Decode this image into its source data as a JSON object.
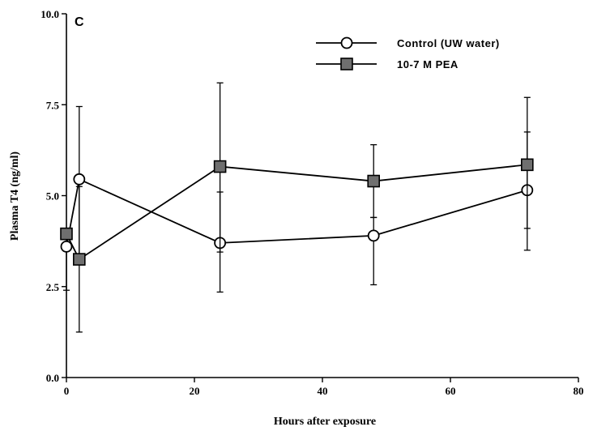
{
  "chart_data": {
    "type": "line",
    "panel_label": "C",
    "xlabel": "Hours after exposure",
    "ylabel": "Plasma T4 (ng/ml)",
    "xlim": [
      0,
      80
    ],
    "ylim": [
      0,
      10
    ],
    "x_ticks": [
      0,
      20,
      40,
      60,
      80
    ],
    "x_tick_labels": [
      "0",
      "20",
      "40",
      "60",
      "80"
    ],
    "y_ticks": [
      0,
      2.5,
      5,
      7.5,
      10
    ],
    "y_tick_labels": [
      "0.0",
      "2.5",
      "5.0",
      "7.5",
      "10.0"
    ],
    "grid": false,
    "legend_position": "top-right",
    "series": [
      {
        "name": "Control (UW water)",
        "marker": "circle",
        "x": [
          0,
          2,
          24,
          48,
          72
        ],
        "y": [
          3.6,
          5.45,
          3.7,
          3.9,
          5.15
        ],
        "err_low": [
          2.4,
          3.3,
          3.45,
          2.55,
          4.1
        ],
        "err_high": [
          3.6,
          7.45,
          5.1,
          4.4,
          6.75
        ]
      },
      {
        "name": "10-7 M PEA",
        "marker": "square",
        "x": [
          0,
          2,
          24,
          48,
          72
        ],
        "y": [
          3.95,
          3.25,
          5.8,
          5.4,
          5.85
        ],
        "err_low": [
          3.95,
          1.25,
          2.35,
          4.4,
          3.5
        ],
        "err_high": [
          3.95,
          5.25,
          8.1,
          6.4,
          7.7
        ]
      }
    ]
  }
}
